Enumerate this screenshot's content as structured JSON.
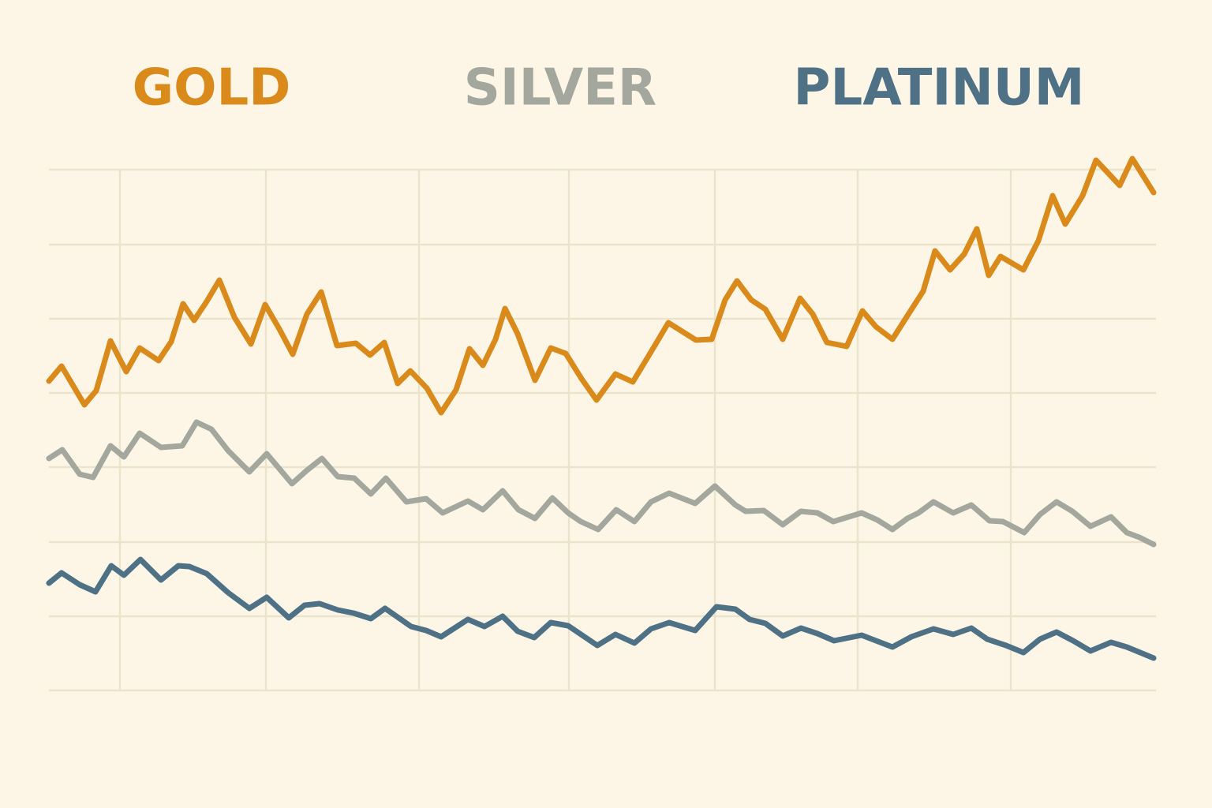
{
  "chart_data": {
    "type": "line",
    "xlim": [
      0,
      1403
    ],
    "xticks": [
      90,
      275,
      469,
      659,
      844,
      1025,
      1219
    ],
    "ylim": [
      0,
      690
    ],
    "yticks": [
      0,
      94,
      188,
      283,
      377,
      471,
      565,
      660
    ],
    "grid": true,
    "series": [
      {
        "name": "GOLD",
        "color": "#d98a1b",
        "x": [
          0,
          16,
          45,
          60,
          78,
          98,
          115,
          139,
          155,
          170,
          184,
          200,
          216,
          235,
          256,
          274,
          292,
          309,
          327,
          345,
          365,
          389,
          407,
          425,
          442,
          458,
          479,
          497,
          516,
          533,
          550,
          566,
          578,
          594,
          616,
          636,
          655,
          675,
          694,
          718,
          740,
          763,
          785,
          820,
          840,
          857,
          872,
          890,
          908,
          930,
          952,
          968,
          986,
          1011,
          1031,
          1048,
          1069,
          1090,
          1108,
          1123,
          1142,
          1160,
          1176,
          1191,
          1206,
          1235,
          1254,
          1272,
          1288,
          1310,
          1327,
          1357,
          1373,
          1400
        ],
        "values": [
          392,
          411,
          362,
          380,
          443,
          404,
          434,
          418,
          442,
          490,
          469,
          493,
          520,
          473,
          439,
          489,
          458,
          426,
          477,
          505,
          437,
          440,
          425,
          441,
          389,
          405,
          383,
          352,
          381,
          433,
          412,
          445,
          484,
          452,
          393,
          434,
          427,
          395,
          368,
          401,
          391,
          429,
          466,
          444,
          445,
          495,
          519,
          495,
          483,
          445,
          497,
          477,
          441,
          436,
          481,
          461,
          445,
          478,
          506,
          557,
          533,
          553,
          585,
          526,
          550,
          533,
          570,
          627,
          591,
          627,
          672,
          640,
          674,
          631
        ]
      },
      {
        "name": "SILVER",
        "color": "#a4a79d",
        "x": [
          0,
          17,
          39,
          56,
          78,
          95,
          115,
          142,
          169,
          187,
          206,
          227,
          254,
          276,
          308,
          327,
          346,
          366,
          387,
          408,
          427,
          453,
          478,
          499,
          531,
          550,
          575,
          595,
          616,
          638,
          658,
          674,
          696,
          719,
          742,
          763,
          786,
          819,
          844,
          870,
          883,
          906,
          930,
          953,
          974,
          994,
          1030,
          1050,
          1069,
          1088,
          1102,
          1121,
          1146,
          1169,
          1192,
          1209,
          1236,
          1256,
          1277,
          1297,
          1320,
          1346,
          1366,
          1382,
          1400
        ],
        "values": [
          294,
          305,
          274,
          270,
          310,
          296,
          326,
          308,
          310,
          340,
          331,
          304,
          277,
          300,
          262,
          279,
          294,
          271,
          269,
          249,
          269,
          239,
          243,
          225,
          240,
          229,
          253,
          229,
          218,
          244,
          225,
          214,
          204,
          229,
          214,
          239,
          250,
          237,
          259,
          235,
          227,
          228,
          210,
          227,
          225,
          214,
          225,
          216,
          204,
          218,
          225,
          239,
          225,
          235,
          215,
          214,
          200,
          223,
          239,
          227,
          208,
          220,
          200,
          194,
          185
        ]
      },
      {
        "name": "PLATINUM",
        "color": "#4f7186",
        "x": [
          0,
          16,
          39,
          59,
          79,
          95,
          116,
          142,
          164,
          178,
          200,
          227,
          254,
          276,
          304,
          324,
          343,
          366,
          386,
          408,
          426,
          459,
          478,
          497,
          531,
          552,
          575,
          594,
          615,
          636,
          658,
          695,
          718,
          742,
          763,
          786,
          819,
          846,
          870,
          888,
          908,
          930,
          953,
          974,
          995,
          1030,
          1069,
          1093,
          1121,
          1146,
          1169,
          1189,
          1213,
          1235,
          1256,
          1277,
          1298,
          1320,
          1346,
          1366,
          1400
        ],
        "values": [
          136,
          149,
          134,
          125,
          158,
          146,
          166,
          140,
          158,
          157,
          148,
          124,
          104,
          118,
          92,
          108,
          110,
          102,
          98,
          91,
          104,
          81,
          76,
          68,
          90,
          81,
          94,
          75,
          67,
          86,
          82,
          57,
          71,
          60,
          78,
          86,
          76,
          106,
          103,
          90,
          85,
          69,
          79,
          72,
          63,
          70,
          55,
          68,
          78,
          71,
          79,
          65,
          57,
          48,
          65,
          74,
          63,
          50,
          61,
          55,
          41
        ]
      }
    ]
  }
}
